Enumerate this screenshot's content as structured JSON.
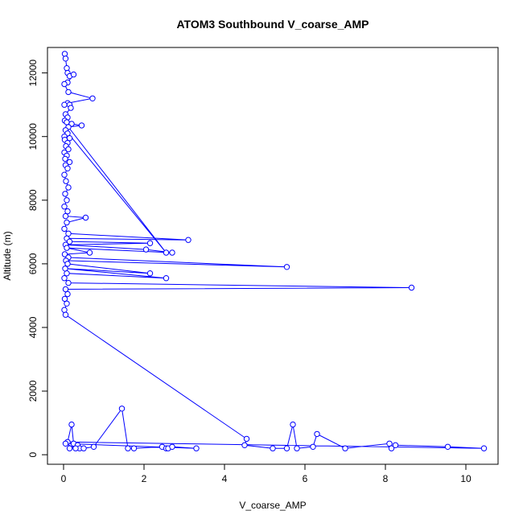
{
  "chart_data": {
    "type": "line",
    "title": "ATOM3 Southbound V_coarse_AMP",
    "xlabel": "V_coarse_AMP",
    "ylabel": "Altitude (m)",
    "xlim": [
      -0.4,
      10.8
    ],
    "ylim": [
      -300,
      12800
    ],
    "x_ticks": [
      0,
      2,
      4,
      6,
      8,
      10
    ],
    "y_ticks": [
      0,
      2000,
      4000,
      6000,
      8000,
      10000,
      12000
    ],
    "grid": false,
    "marker": "open-circle",
    "colors": {
      "series": "#0000ff",
      "axis": "#000000"
    },
    "series": [
      {
        "values": [
          [
            0.03,
            12600
          ],
          [
            0.05,
            12450
          ],
          [
            0.08,
            12150
          ],
          [
            0.1,
            12000
          ],
          [
            0.15,
            11900
          ],
          [
            0.25,
            11950
          ],
          [
            0.1,
            11700
          ],
          [
            0.02,
            11650
          ],
          [
            0.12,
            11400
          ],
          [
            0.72,
            11200
          ],
          [
            0.1,
            11050
          ],
          [
            0.02,
            11000
          ],
          [
            0.15,
            11000
          ],
          [
            0.18,
            10900
          ],
          [
            0.05,
            10700
          ],
          [
            0.1,
            10600
          ],
          [
            0.03,
            10500
          ],
          [
            0.08,
            10450
          ],
          [
            0.2,
            10400
          ],
          [
            0.45,
            10350
          ],
          [
            0.12,
            10300
          ],
          [
            2.55,
            6350
          ],
          [
            0.05,
            10200
          ],
          [
            0.1,
            10100
          ],
          [
            0.02,
            10000
          ],
          [
            0.15,
            9950
          ],
          [
            0.03,
            9900
          ],
          [
            0.1,
            9800
          ],
          [
            0.06,
            9700
          ],
          [
            0.12,
            9600
          ],
          [
            0.02,
            9500
          ],
          [
            0.08,
            9400
          ],
          [
            0.04,
            9300
          ],
          [
            0.15,
            9200
          ],
          [
            0.05,
            9100
          ],
          [
            0.1,
            9000
          ],
          [
            0.02,
            8800
          ],
          [
            0.06,
            8600
          ],
          [
            0.12,
            8400
          ],
          [
            0.04,
            8200
          ],
          [
            0.08,
            8000
          ],
          [
            0.02,
            7800
          ],
          [
            0.1,
            7650
          ],
          [
            0.05,
            7500
          ],
          [
            0.55,
            7450
          ],
          [
            0.08,
            7300
          ],
          [
            0.02,
            7100
          ],
          [
            0.12,
            6950
          ],
          [
            3.1,
            6750
          ],
          [
            0.08,
            6800
          ],
          [
            0.15,
            6700
          ],
          [
            2.15,
            6650
          ],
          [
            0.05,
            6600
          ],
          [
            2.05,
            6450
          ],
          [
            2.7,
            6350
          ],
          [
            0.08,
            6500
          ],
          [
            0.65,
            6350
          ],
          [
            0.03,
            6300
          ],
          [
            0.12,
            6200
          ],
          [
            5.55,
            5900
          ],
          [
            0.06,
            6100
          ],
          [
            0.1,
            6000
          ],
          [
            2.15,
            5700
          ],
          [
            0.04,
            5850
          ],
          [
            2.55,
            5550
          ],
          [
            0.08,
            5700
          ],
          [
            0.02,
            5550
          ],
          [
            0.12,
            5400
          ],
          [
            8.65,
            5250
          ],
          [
            0.05,
            5200
          ],
          [
            0.1,
            5050
          ],
          [
            0.03,
            4900
          ],
          [
            0.08,
            4750
          ],
          [
            0.02,
            4550
          ],
          [
            0.05,
            4400
          ],
          [
            4.55,
            500
          ],
          [
            4.5,
            300
          ],
          [
            5.2,
            200
          ],
          [
            5.55,
            200
          ],
          [
            5.7,
            950
          ],
          [
            5.8,
            200
          ],
          [
            6.2,
            250
          ],
          [
            6.3,
            650
          ],
          [
            7.0,
            200
          ],
          [
            8.1,
            350
          ],
          [
            8.15,
            200
          ],
          [
            8.25,
            300
          ],
          [
            9.55,
            250
          ],
          [
            10.45,
            200
          ],
          [
            0.1,
            400
          ],
          [
            0.2,
            950
          ],
          [
            0.25,
            350
          ],
          [
            0.35,
            300
          ],
          [
            0.4,
            200
          ],
          [
            0.15,
            200
          ],
          [
            0.5,
            200
          ],
          [
            0.75,
            250
          ],
          [
            1.45,
            1450
          ],
          [
            1.6,
            200
          ],
          [
            1.75,
            200
          ],
          [
            2.45,
            250
          ],
          [
            2.55,
            200
          ],
          [
            2.6,
            200
          ],
          [
            2.7,
            250
          ],
          [
            3.3,
            200
          ],
          [
            0.05,
            350
          ],
          [
            0.3,
            200
          ]
        ]
      }
    ]
  }
}
